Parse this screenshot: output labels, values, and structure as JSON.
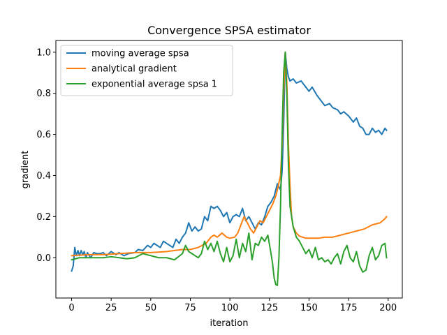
{
  "chart_data": {
    "type": "line",
    "title": "Convergence SPSA estimator",
    "xlabel": "iteration",
    "ylabel": "gradient",
    "xlim": [
      -9.95,
      208.95
    ],
    "ylim": [
      -0.196,
      1.057
    ],
    "xticks": [
      0,
      25,
      50,
      75,
      100,
      125,
      150,
      175,
      200
    ],
    "xtick_labels": [
      "0",
      "25",
      "50",
      "75",
      "100",
      "125",
      "150",
      "175",
      "200"
    ],
    "yticks": [
      0.0,
      0.2,
      0.4,
      0.6,
      0.8,
      1.0
    ],
    "ytick_labels": [
      "0.0",
      "0.2",
      "0.4",
      "0.6",
      "0.8",
      "1.0"
    ],
    "grid": false,
    "legend_position": "upper-left",
    "series": [
      {
        "name": "moving average spsa",
        "color": "#1f77b4",
        "x": [
          0,
          1,
          2,
          3,
          4,
          5,
          6,
          7,
          8,
          9,
          10,
          12,
          14,
          16,
          18,
          20,
          22,
          25,
          28,
          30,
          33,
          36,
          40,
          42,
          45,
          48,
          50,
          52,
          54,
          56,
          58,
          60,
          62,
          64,
          66,
          68,
          70,
          72,
          74,
          76,
          78,
          80,
          82,
          84,
          86,
          88,
          90,
          92,
          94,
          96,
          98,
          100,
          102,
          104,
          106,
          108,
          110,
          112,
          114,
          116,
          118,
          120,
          122,
          124,
          126,
          128,
          130,
          132,
          133,
          134,
          135,
          136,
          137,
          138,
          140,
          142,
          145,
          148,
          150,
          152,
          155,
          158,
          160,
          163,
          165,
          168,
          170,
          172,
          175,
          178,
          180,
          182,
          184,
          186,
          188,
          190,
          192,
          194,
          196,
          198,
          199
        ],
        "y": [
          -0.065,
          -0.04,
          0.05,
          0.01,
          0.035,
          0.01,
          0.035,
          0.015,
          0.03,
          0.0,
          0.025,
          0.0,
          0.025,
          0.02,
          0.02,
          0.025,
          0.01,
          0.03,
          0.015,
          0.025,
          0.01,
          0.02,
          0.025,
          0.04,
          0.035,
          0.06,
          0.05,
          0.07,
          0.06,
          0.05,
          0.08,
          0.07,
          0.06,
          0.05,
          0.09,
          0.07,
          0.1,
          0.12,
          0.17,
          0.13,
          0.15,
          0.13,
          0.14,
          0.2,
          0.18,
          0.25,
          0.24,
          0.25,
          0.23,
          0.2,
          0.22,
          0.17,
          0.2,
          0.21,
          0.2,
          0.24,
          0.18,
          0.2,
          0.17,
          0.14,
          0.17,
          0.16,
          0.2,
          0.25,
          0.27,
          0.3,
          0.36,
          0.33,
          0.42,
          0.65,
          1.0,
          0.92,
          0.88,
          0.86,
          0.87,
          0.85,
          0.86,
          0.83,
          0.81,
          0.83,
          0.79,
          0.76,
          0.74,
          0.75,
          0.73,
          0.72,
          0.7,
          0.71,
          0.69,
          0.66,
          0.68,
          0.64,
          0.63,
          0.6,
          0.6,
          0.63,
          0.61,
          0.62,
          0.6,
          0.63,
          0.62
        ]
      },
      {
        "name": "analytical gradient",
        "color": "#ff7f0e",
        "x": [
          0,
          10,
          20,
          30,
          40,
          50,
          60,
          70,
          75,
          80,
          85,
          88,
          90,
          92,
          95,
          98,
          100,
          103,
          105,
          107,
          109,
          111,
          113,
          115,
          117,
          119,
          121,
          123,
          125,
          127,
          129,
          130,
          132,
          133,
          134,
          135,
          136,
          137,
          138,
          139,
          140,
          142,
          144,
          146,
          148,
          150,
          153,
          156,
          160,
          165,
          170,
          175,
          180,
          185,
          190,
          195,
          198,
          199
        ],
        "y": [
          0.01,
          0.015,
          0.015,
          0.02,
          0.025,
          0.025,
          0.03,
          0.04,
          0.04,
          0.05,
          0.07,
          0.1,
          0.11,
          0.1,
          0.12,
          0.1,
          0.095,
          0.1,
          0.12,
          0.16,
          0.2,
          0.17,
          0.14,
          0.12,
          0.15,
          0.18,
          0.17,
          0.2,
          0.23,
          0.26,
          0.3,
          0.33,
          0.4,
          0.55,
          0.8,
          1.0,
          0.85,
          0.55,
          0.35,
          0.2,
          0.15,
          0.12,
          0.105,
          0.1,
          0.095,
          0.095,
          0.095,
          0.095,
          0.1,
          0.1,
          0.11,
          0.12,
          0.13,
          0.14,
          0.16,
          0.17,
          0.19,
          0.2
        ]
      },
      {
        "name": "exponential average spsa 1",
        "color": "#2ca02c",
        "x": [
          0,
          5,
          10,
          15,
          20,
          25,
          30,
          35,
          40,
          45,
          50,
          55,
          60,
          65,
          70,
          72,
          74,
          76,
          78,
          80,
          82,
          84,
          86,
          88,
          90,
          92,
          94,
          96,
          98,
          100,
          102,
          104,
          106,
          108,
          110,
          112,
          114,
          116,
          118,
          120,
          122,
          124,
          126,
          127,
          128,
          129,
          130,
          131,
          132,
          133,
          134,
          135,
          136,
          137,
          138,
          140,
          142,
          144,
          146,
          148,
          150,
          152,
          154,
          156,
          158,
          160,
          162,
          164,
          166,
          168,
          170,
          172,
          174,
          176,
          178,
          180,
          182,
          184,
          186,
          188,
          190,
          192,
          194,
          196,
          198,
          199
        ],
        "y": [
          -0.01,
          0.0,
          0.0,
          0.0,
          0.0,
          0.005,
          0.0,
          -0.005,
          0.0,
          0.02,
          0.01,
          0.0,
          0.0,
          -0.01,
          0.02,
          0.06,
          0.03,
          0.02,
          0.01,
          0.0,
          0.02,
          0.08,
          0.04,
          0.07,
          0.03,
          0.08,
          0.02,
          -0.02,
          0.05,
          -0.02,
          0.01,
          0.09,
          0.0,
          0.07,
          0.03,
          0.12,
          -0.01,
          0.07,
          0.06,
          0.1,
          0.08,
          0.11,
          0.02,
          -0.03,
          -0.1,
          -0.13,
          -0.135,
          0.0,
          0.25,
          0.6,
          0.9,
          1.0,
          0.8,
          0.45,
          0.25,
          0.15,
          0.1,
          0.08,
          0.05,
          0.02,
          0.04,
          0.0,
          0.05,
          -0.01,
          0.0,
          -0.02,
          -0.01,
          -0.03,
          0.0,
          0.02,
          -0.03,
          0.03,
          0.06,
          0.0,
          -0.02,
          0.03,
          -0.04,
          -0.07,
          -0.06,
          0.01,
          0.05,
          -0.01,
          0.01,
          0.06,
          0.07,
          0.0
        ]
      }
    ]
  }
}
